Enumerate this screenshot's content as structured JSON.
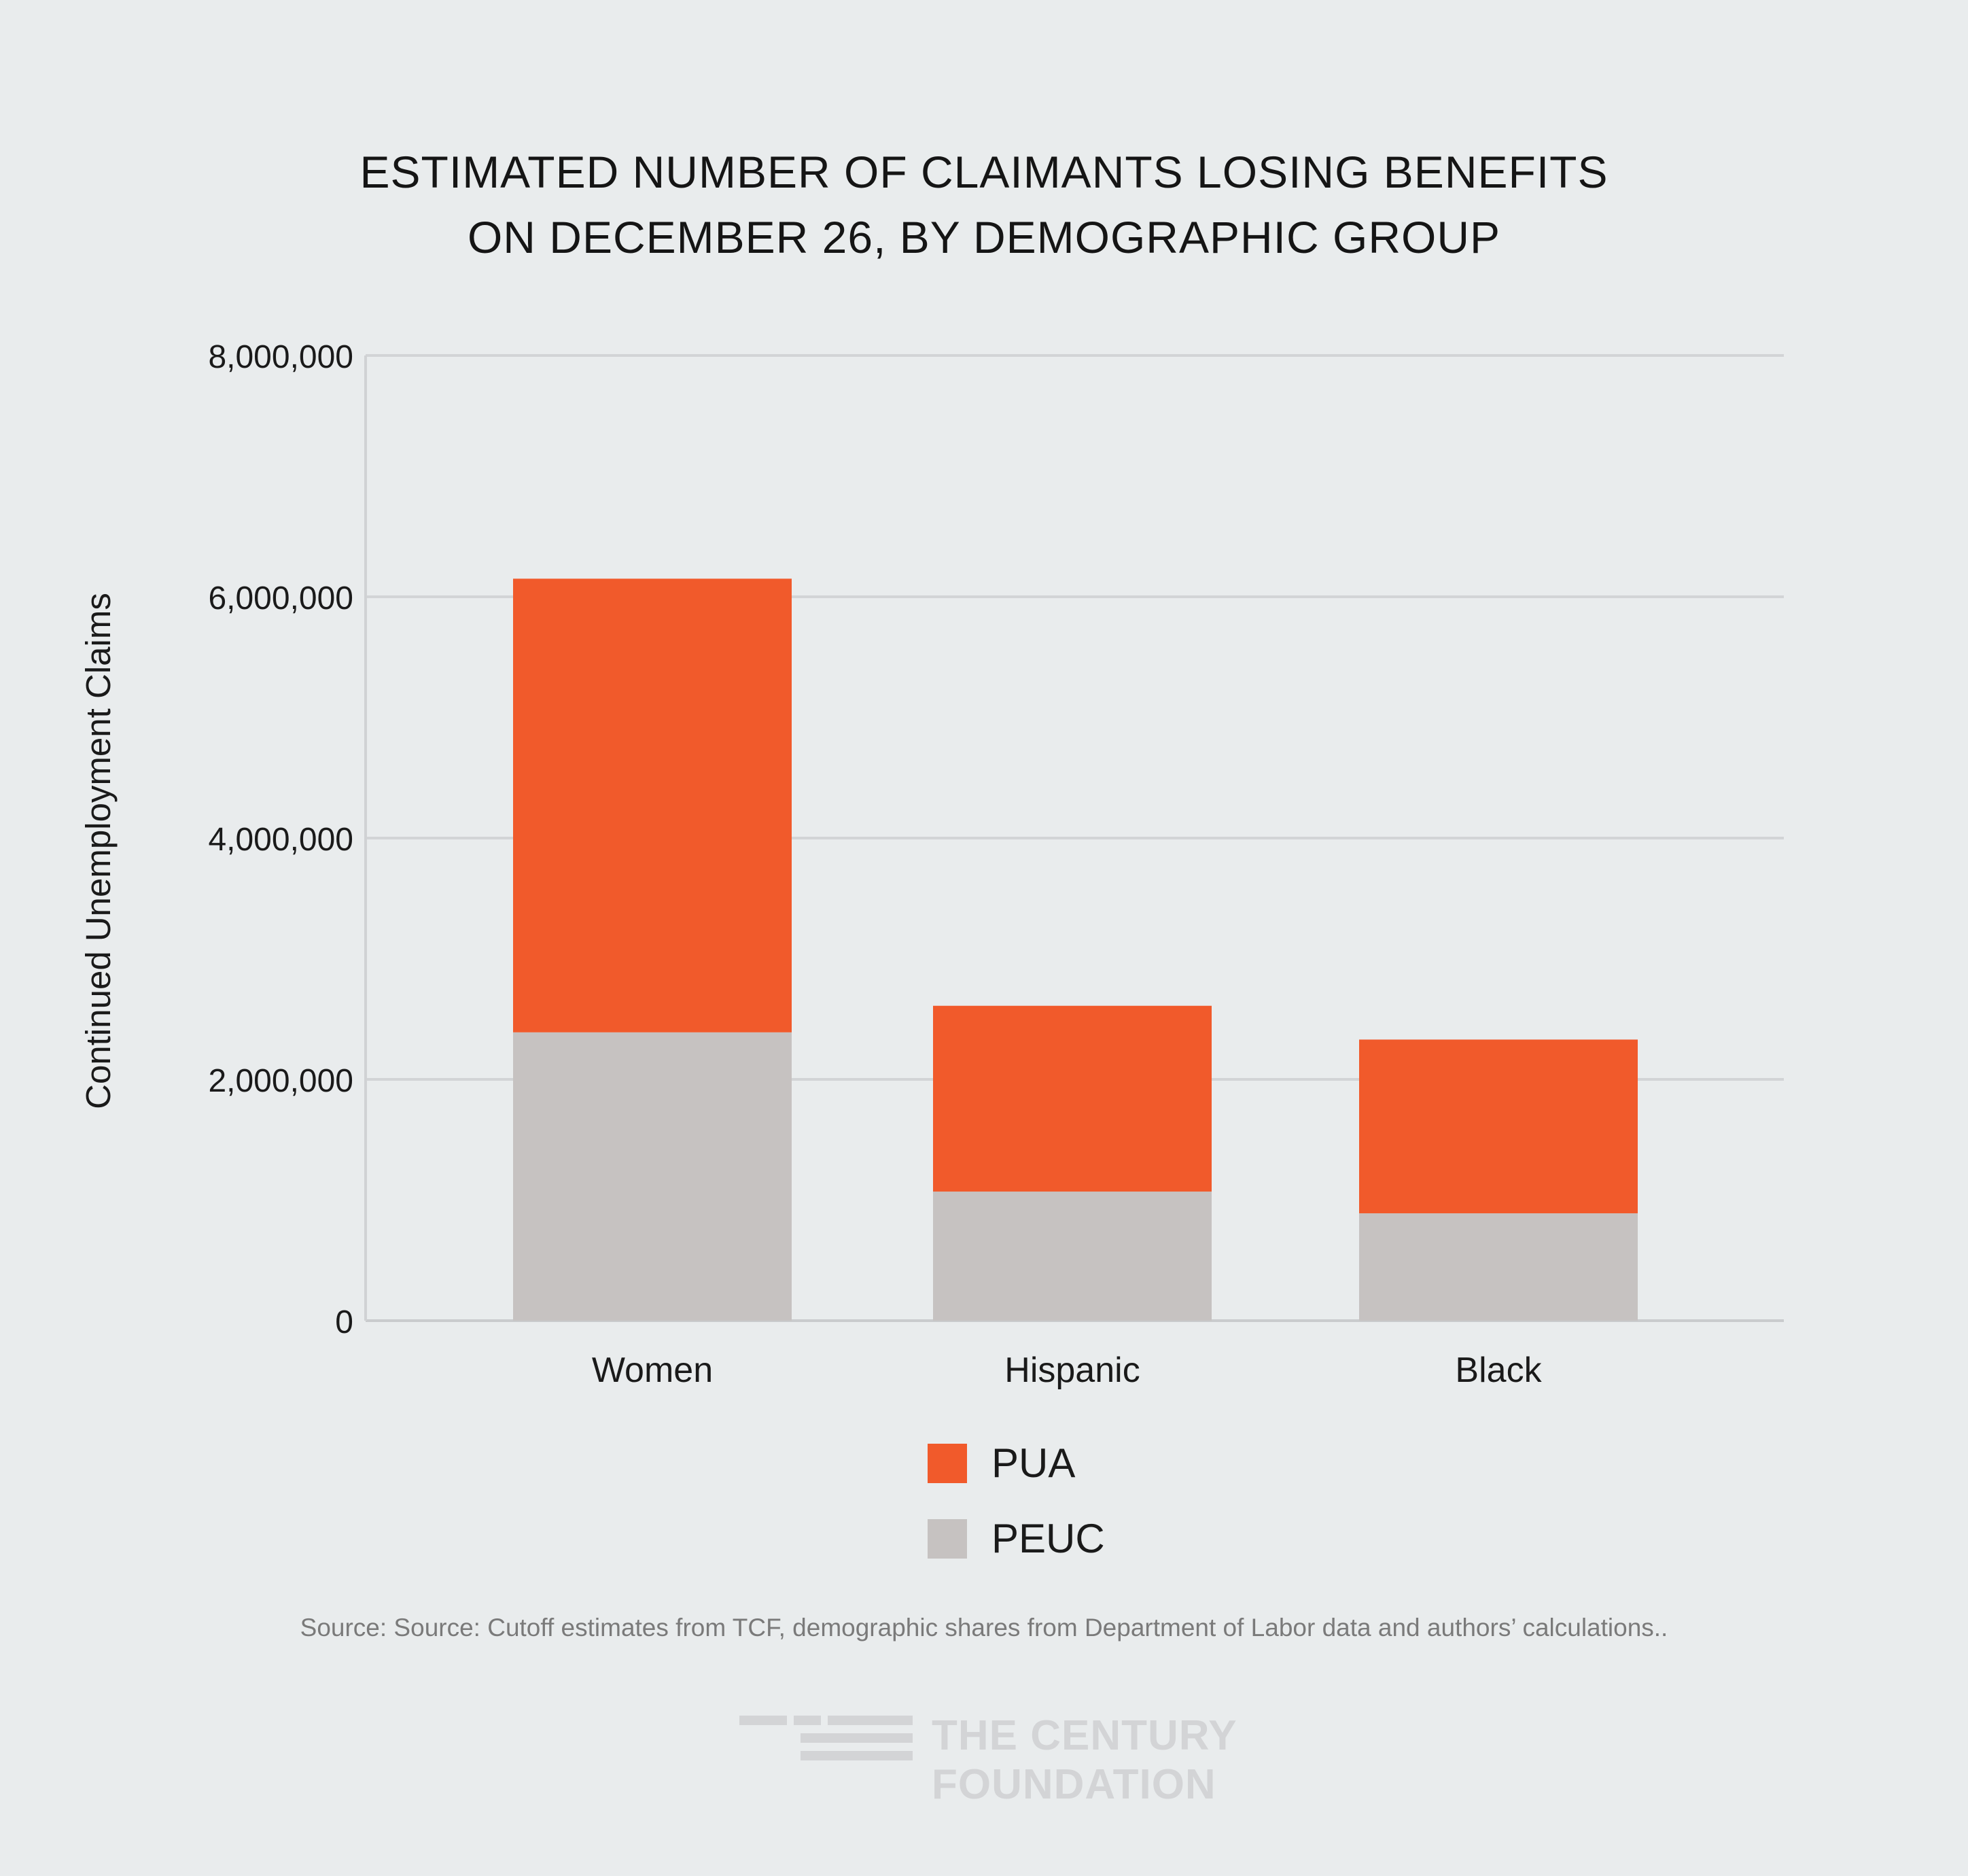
{
  "chart_data": {
    "type": "bar",
    "stacked": true,
    "title_lines": [
      "ESTIMATED NUMBER OF CLAIMANTS LOSING BENEFITS",
      "ON DECEMBER 26, BY DEMOGRAPHIC GROUP"
    ],
    "ylabel": "Continued Unemployment Claims",
    "xlabel": "",
    "ylim": [
      0,
      8000000
    ],
    "yticks": [
      0,
      2000000,
      4000000,
      6000000,
      8000000
    ],
    "ytick_labels": [
      "0",
      "2,000,000",
      "4,000,000",
      "6,000,000",
      "8,000,000"
    ],
    "categories": [
      "Women",
      "Hispanic",
      "Black"
    ],
    "series": [
      {
        "name": "PEUC",
        "color": "#c6c2c1",
        "values": [
          2390000,
          1070000,
          890000
        ]
      },
      {
        "name": "PUA",
        "color": "#f15a2b",
        "values": [
          3760000,
          1540000,
          1440000
        ]
      }
    ],
    "legend": [
      {
        "name": "PUA",
        "color": "#f15a2b"
      },
      {
        "name": "PEUC",
        "color": "#c6c2c1"
      }
    ],
    "legend_position": "bottom-center",
    "grid": true
  },
  "source": "Source:  Source: Cutoff estimates from TCF, demographic shares from Department of Labor data and authors’ calculations..",
  "logo": {
    "line1": "THE CENTURY",
    "line2": "FOUNDATION"
  }
}
